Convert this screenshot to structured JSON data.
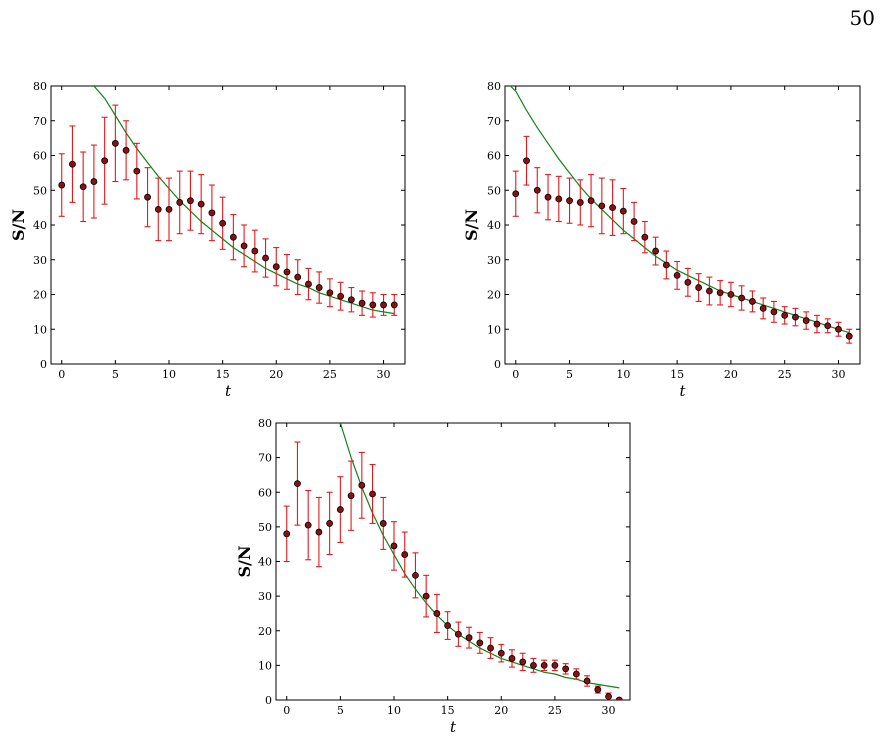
{
  "page": {
    "number": "50"
  },
  "colors": {
    "error": "#e8191c",
    "fit": "#12841a",
    "marker": "#8c0f12",
    "marker_edge": "#000000",
    "axis": "#000000"
  },
  "chart_data": [
    {
      "type": "scatter",
      "title": "",
      "xlabel": "t",
      "ylabel": "S/N",
      "xlim": [
        -1,
        32
      ],
      "ylim": [
        0,
        80
      ],
      "xticks": [
        0,
        5,
        10,
        15,
        20,
        25,
        30
      ],
      "yticks": [
        0,
        10,
        20,
        30,
        40,
        50,
        60,
        70,
        80
      ],
      "grid": false,
      "series": [
        {
          "kind": "points_with_error",
          "x": [
            0,
            1,
            2,
            3,
            4,
            5,
            6,
            7,
            8,
            9,
            10,
            11,
            12,
            13,
            14,
            15,
            16,
            17,
            18,
            19,
            20,
            21,
            22,
            23,
            24,
            25,
            26,
            27,
            28,
            29,
            30,
            31
          ],
          "y": [
            51.5,
            57.5,
            51,
            52.5,
            58.5,
            63.5,
            61.5,
            55.5,
            48,
            44.5,
            44.5,
            46.5,
            47,
            46,
            43.5,
            40.5,
            36.5,
            34,
            32.5,
            30.5,
            28,
            26.5,
            25,
            23,
            22,
            20.5,
            19.5,
            18.5,
            17.5,
            17,
            17,
            17
          ],
          "err": [
            9,
            11,
            10,
            10.5,
            12.5,
            11,
            8.5,
            8,
            8.5,
            9,
            9,
            9,
            8.5,
            8.5,
            8,
            7.5,
            6.5,
            6,
            6,
            5.5,
            5.5,
            5,
            5,
            4.5,
            4.5,
            4,
            4,
            3.5,
            3.5,
            3.5,
            3,
            3
          ]
        },
        {
          "kind": "fit_curve",
          "x": [
            3,
            4,
            5,
            6,
            7,
            8,
            9,
            10,
            11,
            12,
            13,
            14,
            15,
            16,
            17,
            18,
            19,
            20,
            21,
            22,
            23,
            24,
            25,
            26,
            27,
            28,
            29,
            30,
            31
          ],
          "y": [
            80,
            76.5,
            71.5,
            66.5,
            62,
            58,
            54,
            50.5,
            47,
            44,
            41,
            38.5,
            36,
            33.5,
            31.5,
            29.5,
            27.5,
            26,
            24.5,
            23,
            22,
            20.5,
            19.5,
            18.5,
            17.5,
            16.5,
            15.5,
            15,
            14.5
          ]
        }
      ]
    },
    {
      "type": "scatter",
      "title": "",
      "xlabel": "t",
      "ylabel": "S/N",
      "xlim": [
        -1,
        32
      ],
      "ylim": [
        0,
        80
      ],
      "xticks": [
        0,
        5,
        10,
        15,
        20,
        25,
        30
      ],
      "yticks": [
        0,
        10,
        20,
        30,
        40,
        50,
        60,
        70,
        80
      ],
      "grid": false,
      "series": [
        {
          "kind": "points_with_error",
          "x": [
            0,
            1,
            2,
            3,
            4,
            5,
            6,
            7,
            8,
            9,
            10,
            11,
            12,
            13,
            14,
            15,
            16,
            17,
            18,
            19,
            20,
            21,
            22,
            23,
            24,
            25,
            26,
            27,
            28,
            29,
            30,
            31
          ],
          "y": [
            49,
            58.5,
            50,
            48,
            47.5,
            47,
            46.5,
            47,
            45.5,
            45,
            44,
            41,
            36.5,
            32.5,
            28.5,
            25.5,
            23.5,
            22,
            21,
            20.5,
            20,
            19,
            18,
            16,
            15,
            14,
            13.5,
            12.5,
            11.5,
            11,
            10,
            8
          ],
          "err": [
            6.5,
            7,
            6.5,
            6.5,
            6.5,
            6.5,
            6.5,
            7.5,
            8,
            8,
            6.5,
            5.5,
            4.5,
            4,
            4,
            4,
            4,
            4,
            4,
            3.5,
            3.5,
            3.5,
            3,
            3,
            3,
            2.5,
            2.5,
            2.5,
            2.5,
            2,
            2,
            2
          ]
        },
        {
          "kind": "fit_curve",
          "x": [
            -0.5,
            0,
            1,
            2,
            3,
            4,
            5,
            6,
            7,
            8,
            9,
            10,
            11,
            12,
            13,
            14,
            15,
            16,
            17,
            18,
            19,
            20,
            21,
            22,
            23,
            24,
            25,
            26,
            27,
            28,
            29,
            30,
            31
          ],
          "y": [
            80,
            78.5,
            73,
            68,
            63.5,
            59,
            55,
            51,
            47.5,
            44.5,
            41.5,
            38.5,
            36,
            33.5,
            31,
            29,
            27,
            25.5,
            24,
            22.5,
            21,
            20,
            19,
            18,
            17,
            16,
            15,
            14,
            13,
            12,
            11,
            10,
            9
          ]
        }
      ]
    },
    {
      "type": "scatter",
      "title": "",
      "xlabel": "t",
      "ylabel": "S/N",
      "xlim": [
        -1,
        32
      ],
      "ylim": [
        0,
        80
      ],
      "xticks": [
        0,
        5,
        10,
        15,
        20,
        25,
        30
      ],
      "yticks": [
        0,
        10,
        20,
        30,
        40,
        50,
        60,
        70,
        80
      ],
      "grid": false,
      "series": [
        {
          "kind": "points_with_error",
          "x": [
            0,
            1,
            2,
            3,
            4,
            5,
            6,
            7,
            8,
            9,
            10,
            11,
            12,
            13,
            14,
            15,
            16,
            17,
            18,
            19,
            20,
            21,
            22,
            23,
            24,
            25,
            26,
            27,
            28,
            29,
            30,
            31
          ],
          "y": [
            48,
            62.5,
            50.5,
            48.5,
            51,
            55,
            59,
            62,
            59.5,
            51,
            44.5,
            42,
            36,
            30,
            25,
            21.5,
            19,
            18,
            16.5,
            15,
            13.5,
            12,
            11,
            10,
            10,
            10,
            9,
            7.5,
            5.5,
            3,
            1,
            0
          ],
          "err": [
            8,
            12,
            10,
            10,
            9,
            9.5,
            10,
            9.5,
            8.5,
            7.5,
            7,
            6.5,
            6.5,
            6,
            5.5,
            4,
            3.5,
            3,
            3,
            3,
            2.5,
            2.5,
            2.5,
            2,
            1.5,
            1.5,
            1.5,
            1.5,
            1.5,
            1,
            1,
            0.5
          ]
        },
        {
          "kind": "fit_curve",
          "x": [
            5,
            6,
            7,
            8,
            9,
            10,
            11,
            12,
            13,
            14,
            15,
            16,
            17,
            18,
            19,
            20,
            21,
            22,
            23,
            24,
            25,
            26,
            27,
            28,
            29,
            30,
            31
          ],
          "y": [
            80,
            70,
            61.5,
            54,
            47.5,
            42,
            36.5,
            32,
            28,
            24.5,
            21.5,
            19,
            17,
            15,
            13.5,
            12,
            11,
            10,
            9,
            8,
            7.5,
            6.5,
            6,
            5,
            4.5,
            4,
            3.5
          ]
        }
      ]
    }
  ]
}
